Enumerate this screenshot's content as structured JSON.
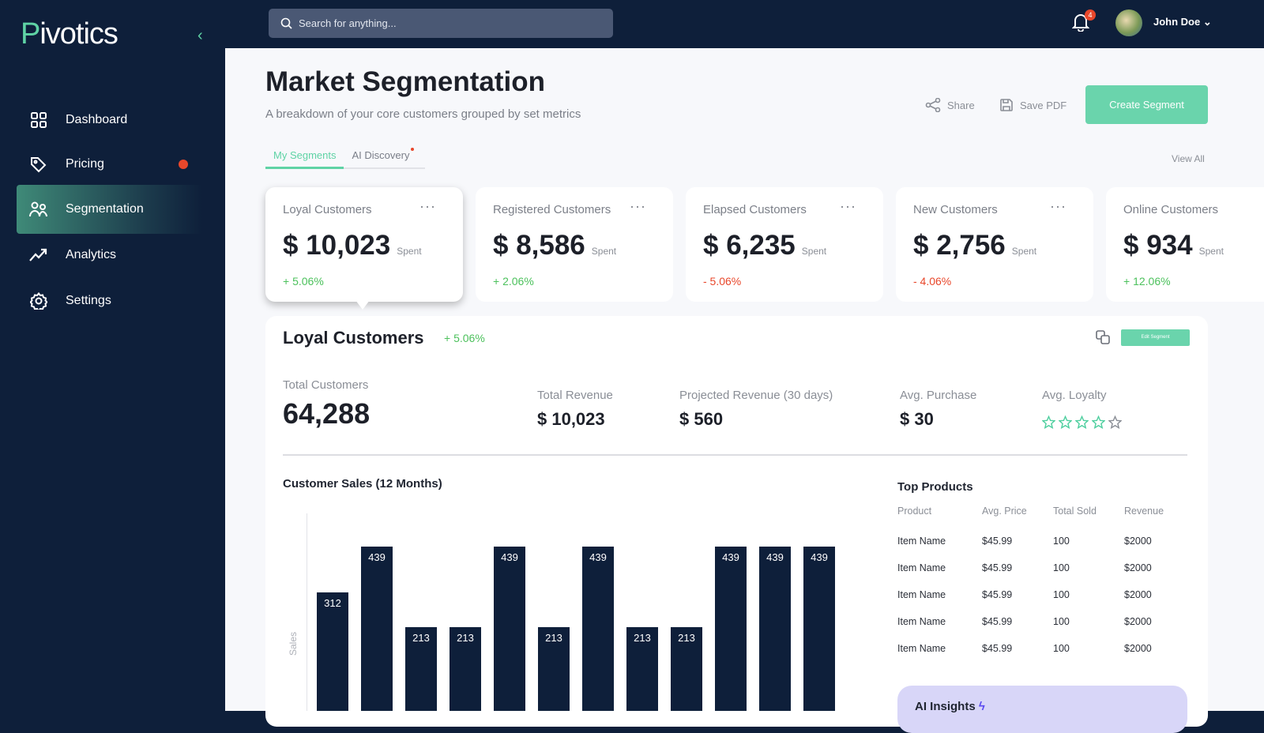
{
  "app": {
    "logo": "Pivotics"
  },
  "sidebar": {
    "items": [
      {
        "label": "Dashboard",
        "icon": "grid-icon"
      },
      {
        "label": "Pricing",
        "icon": "tag-icon",
        "badge_dot": true
      },
      {
        "label": "Segmentation",
        "icon": "users-icon",
        "active": true
      },
      {
        "label": "Analytics",
        "icon": "trend-icon"
      },
      {
        "label": "Settings",
        "icon": "gear-icon"
      }
    ]
  },
  "topbar": {
    "search_placeholder": "Search for anything...",
    "notifications": "4",
    "user": "John Doe"
  },
  "page": {
    "title": "Market Segmentation",
    "subtitle": "A breakdown of your core customers grouped by set metrics",
    "share": "Share",
    "save_pdf": "Save PDF",
    "create": "Create Segment",
    "tabs": [
      "My Segments",
      "AI Discovery"
    ],
    "view_all": "View All"
  },
  "cards": [
    {
      "title": "Loyal Customers",
      "value": "$ 10,023",
      "unit": "Spent",
      "change": "+ 5.06%",
      "trend": "pos"
    },
    {
      "title": "Registered Customers",
      "value": "$ 8,586",
      "unit": "Spent",
      "change": "+ 2.06%",
      "trend": "pos"
    },
    {
      "title": "Elapsed Customers",
      "value": "$ 6,235",
      "unit": "Spent",
      "change": "- 5.06%",
      "trend": "neg"
    },
    {
      "title": "New Customers",
      "value": "$ 2,756",
      "unit": "Spent",
      "change": "- 4.06%",
      "trend": "neg"
    },
    {
      "title": "Online Customers",
      "value": "$ 934",
      "unit": "Spent",
      "change": "+ 12.06%",
      "trend": "pos"
    }
  ],
  "detail": {
    "title": "Loyal Customers",
    "change": "+ 5.06%",
    "edit": "Edit Segment",
    "total_customers_label": "Total Customers",
    "total_customers": "64,288",
    "total_revenue_label": "Total Revenue",
    "total_revenue": "$ 10,023",
    "projected_label": "Projected Revenue (30 days)",
    "projected": "$ 560",
    "avg_purchase_label": "Avg. Purchase",
    "avg_purchase": "$ 30",
    "avg_loyalty_label": "Avg. Loyalty",
    "loyalty_stars": 4,
    "loyalty_max": 5
  },
  "chart_data": {
    "type": "bar",
    "title": "Customer Sales (12 Months)",
    "ylabel": "Sales",
    "values": [
      312,
      439,
      213,
      213,
      439,
      213,
      439,
      213,
      213,
      439,
      439,
      439
    ],
    "colors": {
      "bar": "#0e1f3a"
    }
  },
  "top_products": {
    "title": "Top Products",
    "columns": [
      "Product",
      "Avg. Price",
      "Total Sold",
      "Revenue"
    ],
    "rows": [
      [
        "Item Name",
        "$45.99",
        "100",
        "$2000"
      ],
      [
        "Item Name",
        "$45.99",
        "100",
        "$2000"
      ],
      [
        "Item Name",
        "$45.99",
        "100",
        "$2000"
      ],
      [
        "Item Name",
        "$45.99",
        "100",
        "$2000"
      ],
      [
        "Item Name",
        "$45.99",
        "100",
        "$2000"
      ]
    ]
  },
  "ai_insights": {
    "title": "AI Insights"
  }
}
